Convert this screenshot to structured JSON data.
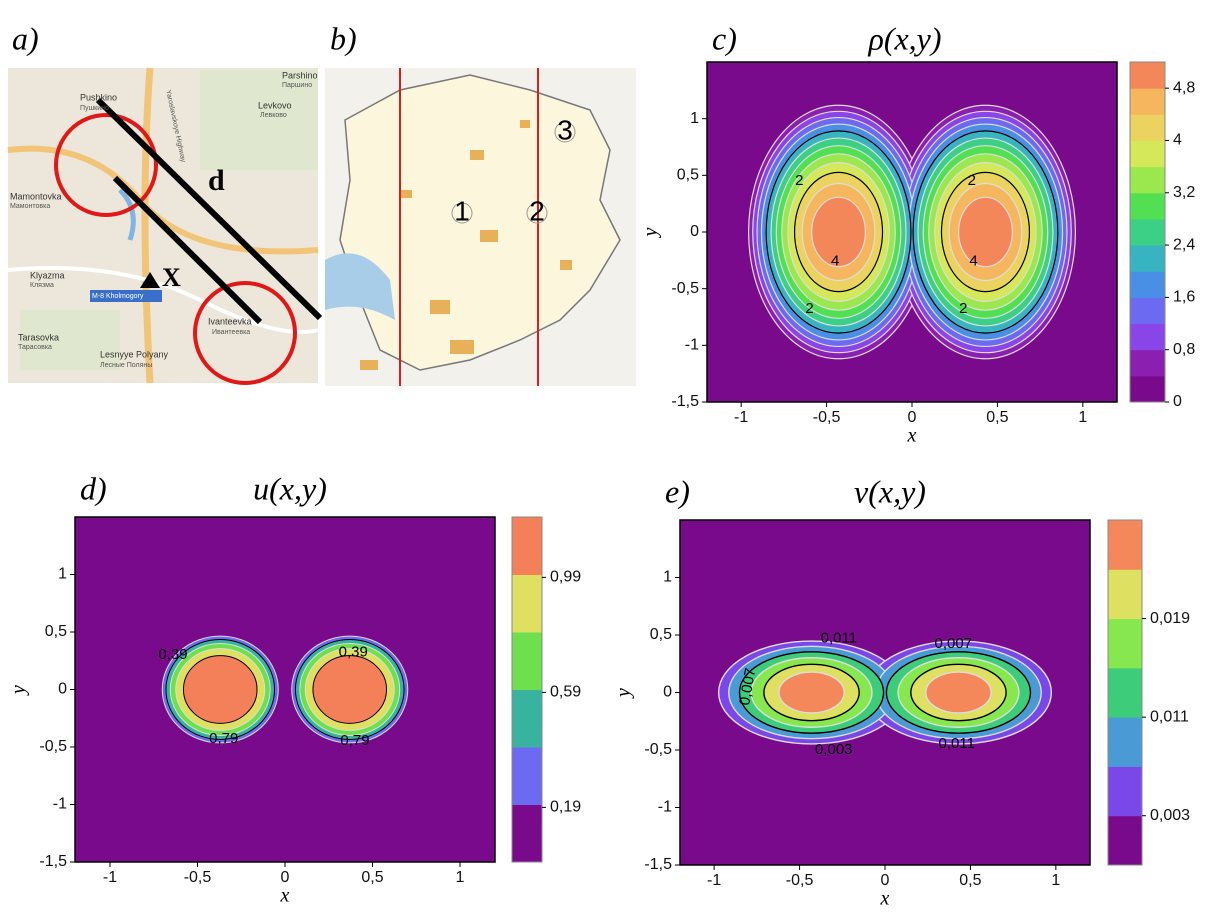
{
  "map_a": {
    "label": "a)",
    "places": [
      "Pushkino",
      "Пушкино",
      "Mamontovka",
      "Мамонтовка",
      "Klyazma",
      "Клязма",
      "M-8 Kholmogory",
      "Ivanteevka",
      "Ивантеевка",
      "Tarasovka",
      "Тарасовка",
      "Lesnyye Polyany",
      "Лесные Поляны",
      "Parshino",
      "Паршино",
      "Levkovo",
      "Левково",
      "Yaroslavskoye Highway"
    ],
    "distance": "d",
    "step": "X"
  },
  "map_b": {
    "label": "b)",
    "points": [
      "1",
      "2",
      "3"
    ]
  },
  "plots": [
    {
      "label": "c)",
      "title": "ρ(x,y)",
      "x_label": "x",
      "y_label": "y",
      "xlim": [
        -1.2,
        1.2
      ],
      "ylim": [
        -1.5,
        1.5
      ],
      "xticks": [
        {
          "value": -1,
          "label": "-1"
        },
        {
          "value": -0.5,
          "label": "-0,5"
        },
        {
          "value": 0,
          "label": "0"
        },
        {
          "value": 0.5,
          "label": "0,5"
        },
        {
          "value": 1,
          "label": "1"
        }
      ],
      "yticks": [
        {
          "value": -1.5,
          "label": "-1,5"
        },
        {
          "value": -1,
          "label": "-1"
        },
        {
          "value": -0.5,
          "label": "-0,5"
        },
        {
          "value": 0,
          "label": "0"
        },
        {
          "value": 0.5,
          "label": "0,5"
        },
        {
          "value": 1,
          "label": "1"
        }
      ],
      "colorbar_lim": [
        0,
        5.2
      ],
      "colorbar_ticks": [
        {
          "value": 0,
          "label": "0"
        },
        {
          "value": 0.8,
          "label": "0,8"
        },
        {
          "value": 1.6,
          "label": "1,6"
        },
        {
          "value": 2.4,
          "label": "2,4"
        },
        {
          "value": 3.2,
          "label": "3,2"
        },
        {
          "value": 4,
          "label": "4"
        },
        {
          "value": 4.8,
          "label": "4,8"
        }
      ],
      "colors": [
        "#7a0a8c",
        "#8a1fb0",
        "#8a45e8",
        "#6d6af2",
        "#4a8fe6",
        "#38b3c0",
        "#3ccf86",
        "#52e052",
        "#9ae84e",
        "#d4e85a",
        "#ecd25e",
        "#f5b65e",
        "#f4875a"
      ],
      "contour_labels": [
        "2",
        "4",
        "2",
        "4",
        "2",
        "2"
      ]
    },
    {
      "label": "d)",
      "title": "u(x,y)",
      "x_label": "x",
      "y_label": "y",
      "xlim": [
        -1.2,
        1.2
      ],
      "ylim": [
        -1.5,
        1.5
      ],
      "xticks": [
        {
          "value": -1,
          "label": "-1"
        },
        {
          "value": -0.5,
          "label": "-0,5"
        },
        {
          "value": 0,
          "label": "0"
        },
        {
          "value": 0.5,
          "label": "0,5"
        },
        {
          "value": 1,
          "label": "1"
        }
      ],
      "yticks": [
        {
          "value": -1.5,
          "label": "-1,5"
        },
        {
          "value": -1,
          "label": "-1"
        },
        {
          "value": -0.5,
          "label": "-0,5"
        },
        {
          "value": 0,
          "label": "0"
        },
        {
          "value": 0.5,
          "label": "0,5"
        },
        {
          "value": 1,
          "label": "1"
        }
      ],
      "colorbar_lim": [
        0,
        1.2
      ],
      "colorbar_ticks": [
        {
          "value": 0.19,
          "label": "0,19"
        },
        {
          "value": 0.59,
          "label": "0,59"
        },
        {
          "value": 0.99,
          "label": "0,99"
        }
      ],
      "colors": [
        "#7a0a8c",
        "#6d6af2",
        "#38b3a0",
        "#6ee04e",
        "#dde060",
        "#f4805a"
      ],
      "contour_labels": [
        "0,39",
        "0,39",
        "0,79",
        "0,79"
      ]
    },
    {
      "label": "e)",
      "title": "v(x,y)",
      "x_label": "x",
      "y_label": "y",
      "xlim": [
        -1.2,
        1.2
      ],
      "ylim": [
        -1.5,
        1.5
      ],
      "xticks": [
        {
          "value": -1,
          "label": "-1"
        },
        {
          "value": -0.5,
          "label": "-0,5"
        },
        {
          "value": 0,
          "label": "0"
        },
        {
          "value": 0.5,
          "label": "0,5"
        },
        {
          "value": 1,
          "label": "1"
        }
      ],
      "yticks": [
        {
          "value": -1.5,
          "label": "-1,5"
        },
        {
          "value": -1,
          "label": "-1"
        },
        {
          "value": -0.5,
          "label": "-0,5"
        },
        {
          "value": 0,
          "label": "0"
        },
        {
          "value": 0.5,
          "label": "0,5"
        },
        {
          "value": 1,
          "label": "1"
        }
      ],
      "colorbar_lim": [
        -0.001,
        0.027
      ],
      "colorbar_ticks": [
        {
          "value": 0.003,
          "label": "0,003"
        },
        {
          "value": 0.011,
          "label": "0,011"
        },
        {
          "value": 0.019,
          "label": "0,019"
        }
      ],
      "colors": [
        "#7a0a8c",
        "#7a48e8",
        "#4a9ad6",
        "#3ccc7a",
        "#86e84e",
        "#dde060",
        "#f4885a"
      ],
      "contour_labels": [
        "0,011",
        "0,007",
        "0,007",
        "0,003",
        "0,011"
      ]
    }
  ]
}
